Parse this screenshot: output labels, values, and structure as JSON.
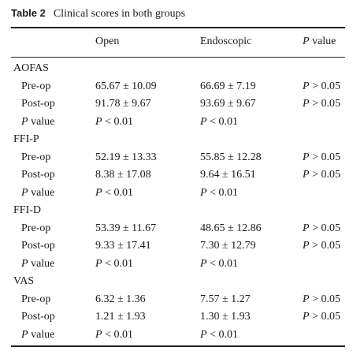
{
  "caption": {
    "label": "Table 2",
    "title": "Clinical scores in both groups"
  },
  "headers": {
    "col1": "",
    "col2": "Open",
    "col3": "Endoscopic",
    "col4_italic": "P",
    "col4_rest": " value"
  },
  "groups": [
    {
      "name": "AOFAS",
      "rows": [
        {
          "label": "Pre-op",
          "open": "65.67 ± 10.09",
          "endo": "66.69 ± 7.19",
          "p": "P > 0.05"
        },
        {
          "label": "Post-op",
          "open": "91.78 ± 9.67",
          "endo": "93.69 ± 9.67",
          "p": "P > 0.05"
        },
        {
          "label": "P value",
          "open": "P < 0.01",
          "endo": "P < 0.01",
          "p": ""
        }
      ]
    },
    {
      "name": "FFI-P",
      "rows": [
        {
          "label": "Pre-op",
          "open": "52.19 ± 13.33",
          "endo": "55.85 ± 12.28",
          "p": "P > 0.05"
        },
        {
          "label": "Post-op",
          "open": "8.38 ± 17.08",
          "endo": "9.64 ± 16.51",
          "p": "P > 0.05"
        },
        {
          "label": "P value",
          "open": "P < 0.01",
          "endo": "P < 0.01",
          "p": ""
        }
      ]
    },
    {
      "name": "FFI-D",
      "rows": [
        {
          "label": "Pre-op",
          "open": "53.39 ± 11.67",
          "endo": "48.65 ± 12.86",
          "p": "P > 0.05"
        },
        {
          "label": "Post-op",
          "open": "9.33 ± 17.41",
          "endo": "7.30 ± 12.79",
          "p": "P > 0.05"
        },
        {
          "label": "P value",
          "open": "P < 0.01",
          "endo": "P < 0.01",
          "p": ""
        }
      ]
    },
    {
      "name": "VAS",
      "rows": [
        {
          "label": "Pre-op",
          "open": "6.32 ± 1.36",
          "endo": "7.57 ± 1.27",
          "p": "P > 0.05"
        },
        {
          "label": "Post-op",
          "open": "1.21 ± 1.93",
          "endo": "1.30 ± 1.93",
          "p": "P > 0.05"
        },
        {
          "label": "P value",
          "open": "P < 0.01",
          "endo": "P < 0.01",
          "p": ""
        }
      ]
    }
  ]
}
